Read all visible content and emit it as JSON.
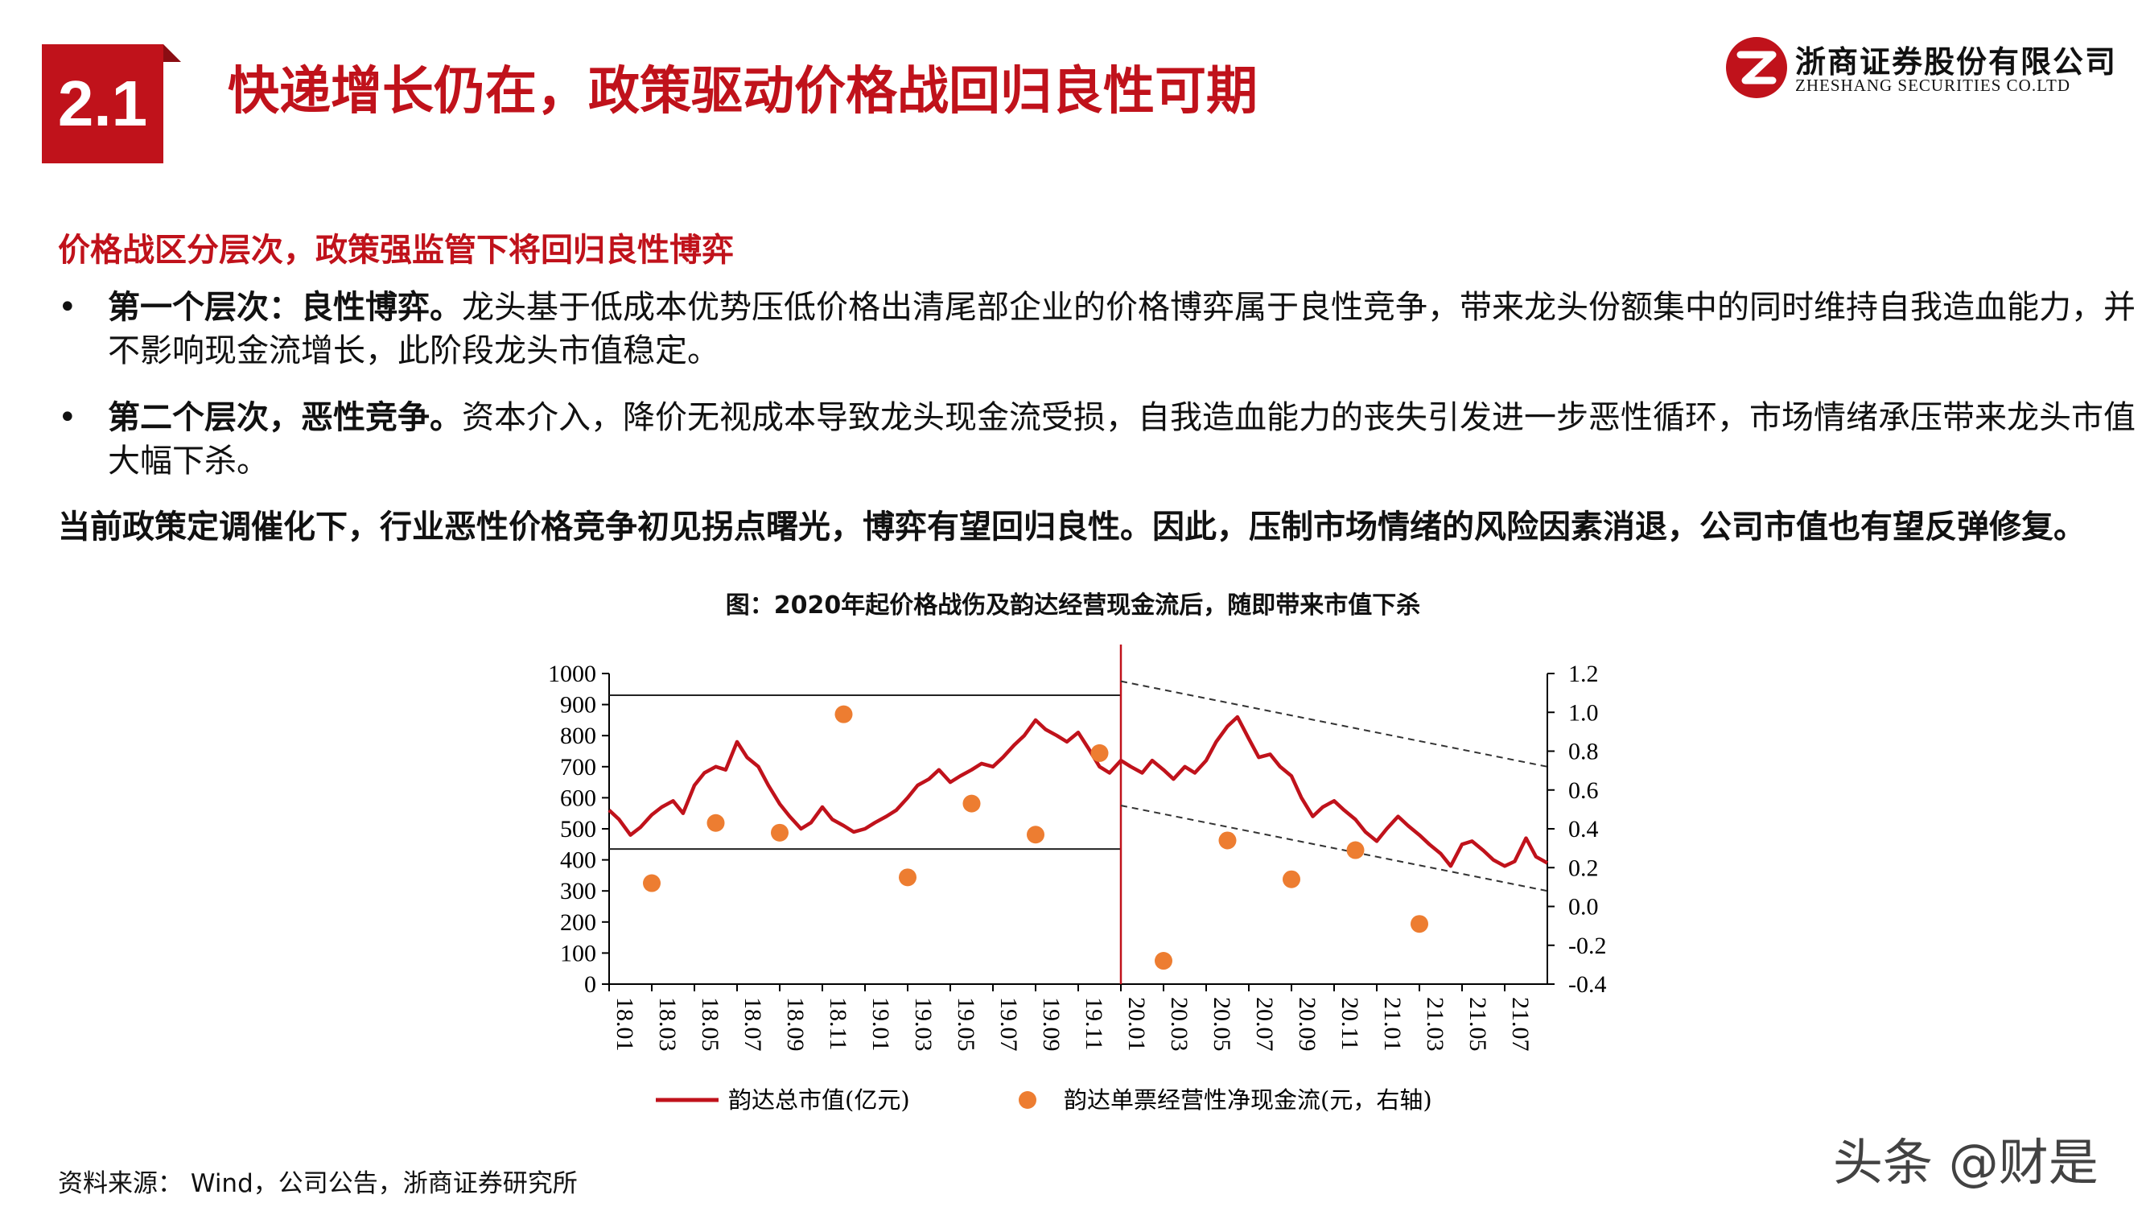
{
  "section": {
    "number": "2.1",
    "title": "快递增长仍在，政策驱动价格战回归良性可期"
  },
  "logo": {
    "company_cn": "浙商证券股份有限公司",
    "company_en": "ZHESHANG SECURITIES CO.LTD"
  },
  "sub_heading": "价格战区分层次，政策强监管下将回归良性博弈",
  "bullets": [
    {
      "marker": "•",
      "bold": "第一个层次：良性博弈。",
      "text": "龙头基于低成本优势压低价格出清尾部企业的价格博弈属于良性竞争，带来龙头份额集中的同时维持自我造血能力，并不影响现金流增长，此阶段龙头市值稳定。"
    },
    {
      "marker": "•",
      "bold": "第二个层次，恶性竞争。",
      "text": "资本介入，降价无视成本导致龙头现金流受损，自我造血能力的丧失引发进一步恶性循环，市场情绪承压带来龙头市值大幅下杀。"
    }
  ],
  "summary": "当前政策定调催化下，行业恶性价格竞争初见拐点曙光，博弈有望回归良性。因此，压制市场情绪的风险因素消退，公司市值也有望反弹修复。",
  "figure_title": "图：2020年起价格战伤及韵达经营现金流后，随即带来市值下杀",
  "chart_data": {
    "type": "line",
    "x_tick_labels": [
      "18.01",
      "18.03",
      "18.05",
      "18.07",
      "18.09",
      "18.11",
      "19.01",
      "19.03",
      "19.05",
      "19.07",
      "19.09",
      "19.11",
      "20.01",
      "20.03",
      "20.05",
      "20.07",
      "20.09",
      "20.11",
      "21.01",
      "21.03",
      "21.05",
      "21.07"
    ],
    "xlim": [
      "2018-01",
      "2021-09"
    ],
    "y_left": {
      "ticks": [
        "0",
        "100",
        "200",
        "300",
        "400",
        "500",
        "600",
        "700",
        "800",
        "900",
        "1000"
      ],
      "ylim": [
        0,
        1000
      ]
    },
    "y_right": {
      "ticks": [
        "-0.4",
        "-0.2",
        "0.0",
        "0.2",
        "0.4",
        "0.6",
        "0.8",
        "1.0",
        "1.2"
      ],
      "ylim": [
        -0.4,
        1.2
      ]
    },
    "series": [
      {
        "name": "韵达总市值(亿元)",
        "axis": "left",
        "color": "#c0121b",
        "style": "line",
        "points": [
          [
            "2018-01",
            560
          ],
          [
            "2018-01-15",
            530
          ],
          [
            "2018-02",
            480
          ],
          [
            "2018-02-15",
            505
          ],
          [
            "2018-03",
            545
          ],
          [
            "2018-03-15",
            570
          ],
          [
            "2018-04",
            590
          ],
          [
            "2018-04-15",
            550
          ],
          [
            "2018-05",
            640
          ],
          [
            "2018-05-15",
            680
          ],
          [
            "2018-06",
            700
          ],
          [
            "2018-06-15",
            690
          ],
          [
            "2018-07",
            780
          ],
          [
            "2018-07-15",
            730
          ],
          [
            "2018-08",
            700
          ],
          [
            "2018-08-15",
            640
          ],
          [
            "2018-09",
            580
          ],
          [
            "2018-09-15",
            540
          ],
          [
            "2018-10",
            500
          ],
          [
            "2018-10-15",
            520
          ],
          [
            "2018-11",
            570
          ],
          [
            "2018-11-15",
            530
          ],
          [
            "2018-12",
            510
          ],
          [
            "2018-12-15",
            490
          ],
          [
            "2019-01",
            500
          ],
          [
            "2019-01-15",
            520
          ],
          [
            "2019-02",
            540
          ],
          [
            "2019-02-15",
            560
          ],
          [
            "2019-03",
            600
          ],
          [
            "2019-03-15",
            640
          ],
          [
            "2019-04",
            660
          ],
          [
            "2019-04-15",
            690
          ],
          [
            "2019-05",
            650
          ],
          [
            "2019-05-15",
            670
          ],
          [
            "2019-06",
            690
          ],
          [
            "2019-06-15",
            710
          ],
          [
            "2019-07",
            700
          ],
          [
            "2019-07-15",
            730
          ],
          [
            "2019-08",
            770
          ],
          [
            "2019-08-15",
            800
          ],
          [
            "2019-09",
            850
          ],
          [
            "2019-09-15",
            820
          ],
          [
            "2019-10",
            800
          ],
          [
            "2019-10-15",
            780
          ],
          [
            "2019-11",
            810
          ],
          [
            "2019-11-15",
            760
          ],
          [
            "2019-12",
            700
          ],
          [
            "2019-12-15",
            680
          ],
          [
            "2020-01",
            720
          ],
          [
            "2020-01-15",
            700
          ],
          [
            "2020-02",
            680
          ],
          [
            "2020-02-15",
            720
          ],
          [
            "2020-03",
            690
          ],
          [
            "2020-03-15",
            660
          ],
          [
            "2020-04",
            700
          ],
          [
            "2020-04-15",
            680
          ],
          [
            "2020-05",
            720
          ],
          [
            "2020-05-15",
            780
          ],
          [
            "2020-06",
            830
          ],
          [
            "2020-06-15",
            860
          ],
          [
            "2020-07",
            790
          ],
          [
            "2020-07-15",
            730
          ],
          [
            "2020-08",
            740
          ],
          [
            "2020-08-15",
            700
          ],
          [
            "2020-09",
            670
          ],
          [
            "2020-09-15",
            600
          ],
          [
            "2020-10",
            540
          ],
          [
            "2020-10-15",
            570
          ],
          [
            "2020-11",
            590
          ],
          [
            "2020-11-15",
            560
          ],
          [
            "2020-12",
            530
          ],
          [
            "2020-12-15",
            490
          ],
          [
            "2021-01",
            460
          ],
          [
            "2021-01-15",
            500
          ],
          [
            "2021-02",
            540
          ],
          [
            "2021-02-15",
            510
          ],
          [
            "2021-03",
            480
          ],
          [
            "2021-03-15",
            450
          ],
          [
            "2021-04",
            420
          ],
          [
            "2021-04-15",
            380
          ],
          [
            "2021-05",
            450
          ],
          [
            "2021-05-15",
            460
          ],
          [
            "2021-06",
            430
          ],
          [
            "2021-06-15",
            400
          ],
          [
            "2021-07",
            380
          ],
          [
            "2021-07-15",
            395
          ],
          [
            "2021-08",
            470
          ],
          [
            "2021-08-15",
            410
          ],
          [
            "2021-09",
            390
          ]
        ]
      },
      {
        "name": "韵达单票经营性净现金流(元，右轴)",
        "axis": "right",
        "color": "#ed7d31",
        "style": "scatter",
        "points": [
          [
            "2018-03",
            0.12
          ],
          [
            "2018-06",
            0.43
          ],
          [
            "2018-09",
            0.38
          ],
          [
            "2018-12",
            0.99
          ],
          [
            "2019-03",
            0.15
          ],
          [
            "2019-06",
            0.53
          ],
          [
            "2019-09",
            0.37
          ],
          [
            "2019-12",
            0.79
          ],
          [
            "2020-03",
            -0.28
          ],
          [
            "2020-06",
            0.34
          ],
          [
            "2020-09",
            0.14
          ],
          [
            "2020-12",
            0.29
          ],
          [
            "2021-03",
            -0.09
          ]
        ]
      }
    ],
    "annotations": [
      {
        "kind": "horizontal-line",
        "y": 930,
        "x_range": [
          "2018-01",
          "2020-01"
        ]
      },
      {
        "kind": "horizontal-line",
        "y": 435,
        "x_range": [
          "2018-01",
          "2020-01"
        ]
      },
      {
        "kind": "vertical-line",
        "x": "2020-01",
        "color": "#c0121b"
      },
      {
        "kind": "dashed-trend-line",
        "from": [
          "2020-01",
          975
        ],
        "to": [
          "2021-09",
          700
        ]
      },
      {
        "kind": "dashed-trend-line",
        "from": [
          "2020-01",
          575
        ],
        "to": [
          "2021-09",
          300
        ]
      }
    ],
    "grid": false,
    "legend_position": "bottom"
  },
  "source": "资料来源：  Wind，公司公告，浙商证券研究所",
  "watermark": "头条 @财是"
}
